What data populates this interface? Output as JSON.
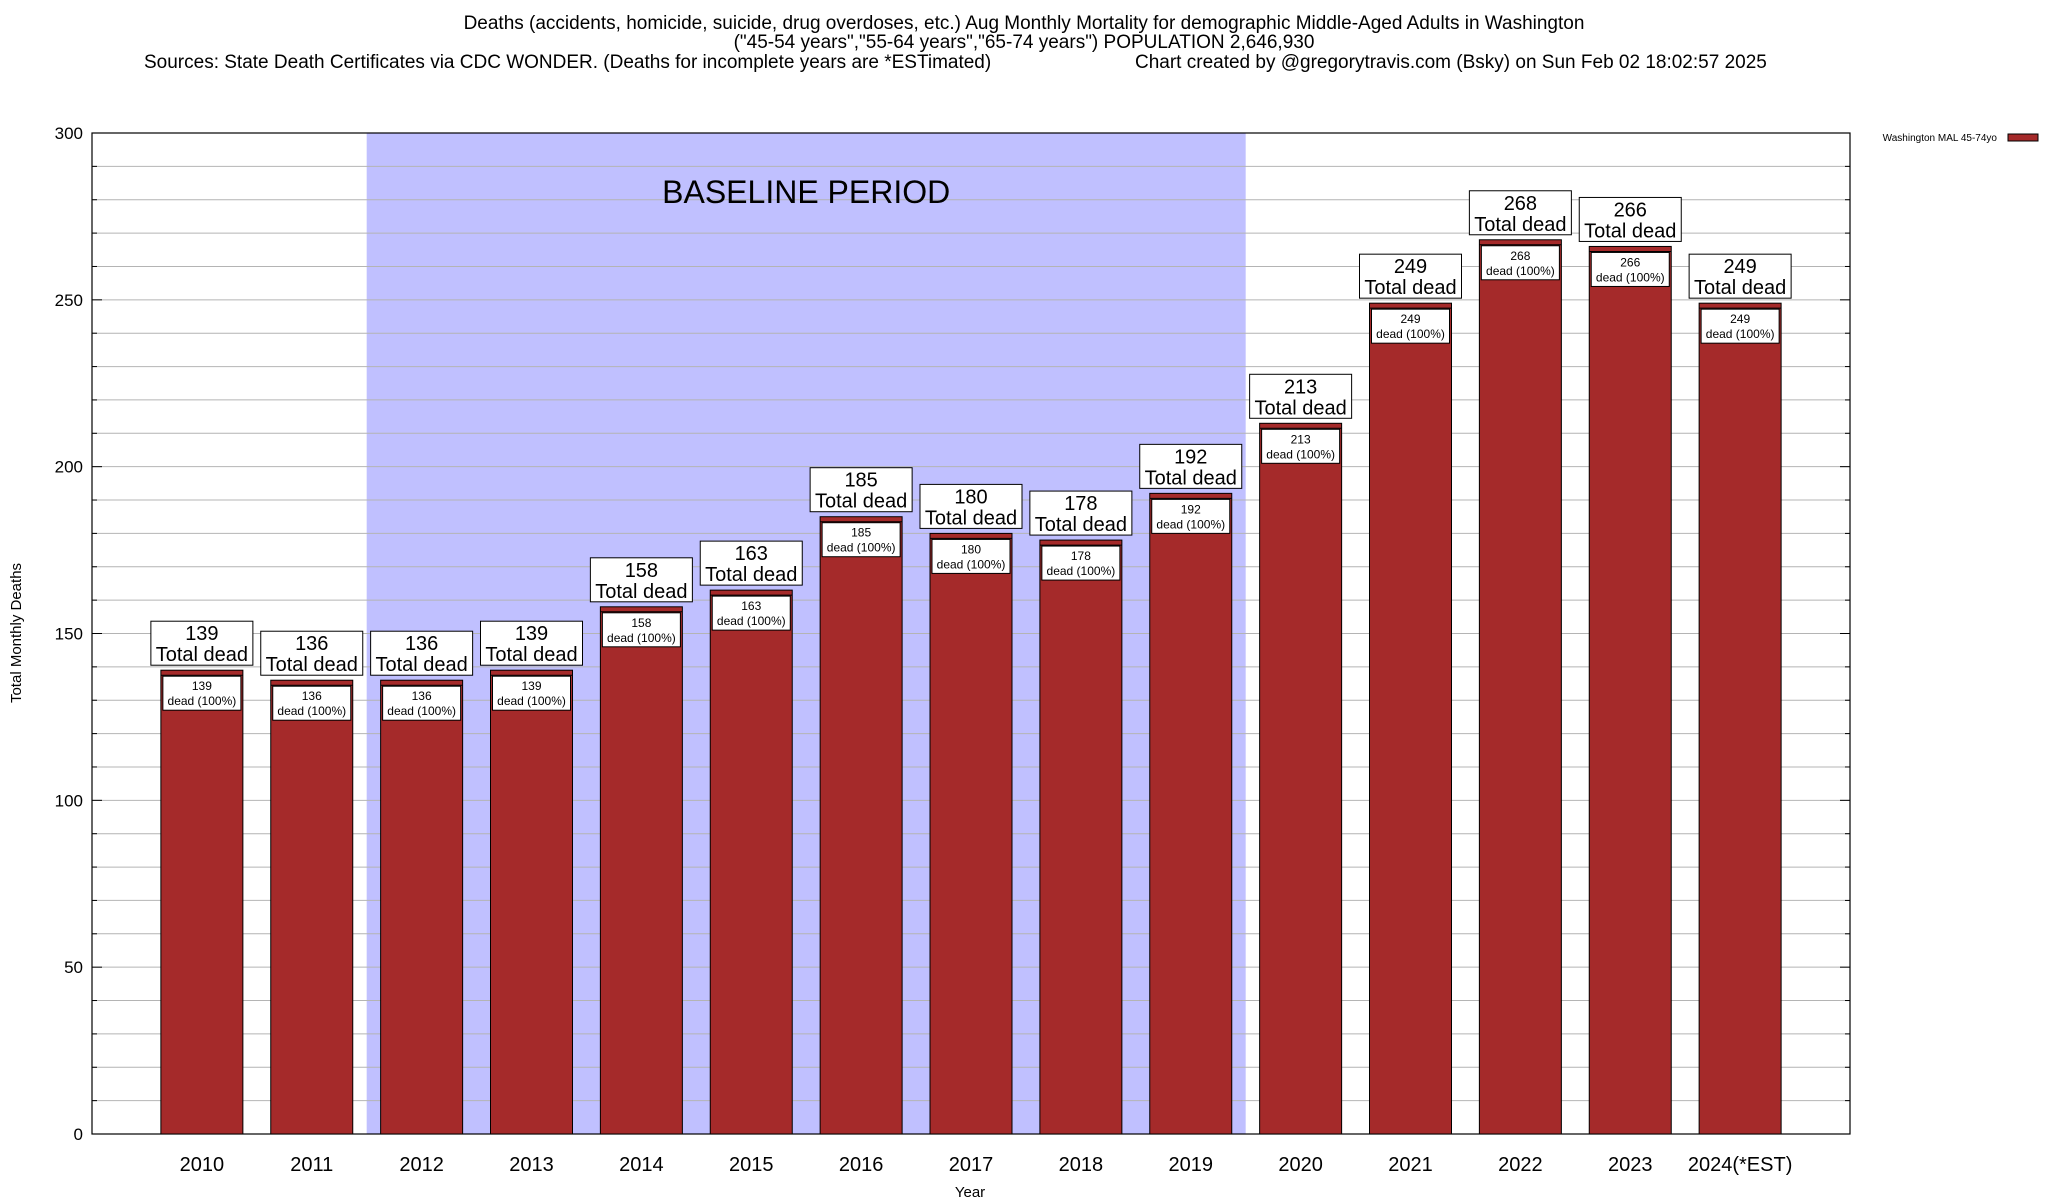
{
  "header": {
    "title_line1": "Deaths (accidents, homicide, suicide, drug overdoses, etc.) Aug Monthly Mortality for demographic Middle-Aged Adults in Washington",
    "title_line2": "(\"45-54 years\",\"55-64 years\",\"65-74 years\") POPULATION 2,646,930",
    "sources": "Sources: State Death Certificates via CDC WONDER. (Deaths for incomplete years are *ESTimated)",
    "credit": "Chart created by @gregorytravis.com (Bsky) on Sun Feb 02 18:02:57 2025"
  },
  "chart_data": {
    "type": "bar",
    "categories": [
      "2010",
      "2011",
      "2012",
      "2013",
      "2014",
      "2015",
      "2016",
      "2017",
      "2018",
      "2019",
      "2020",
      "2021",
      "2022",
      "2023",
      "2024(*EST)"
    ],
    "series": [
      {
        "name": "Washington MAL 45-74yo",
        "values": [
          139,
          136,
          136,
          139,
          158,
          163,
          185,
          180,
          178,
          192,
          213,
          249,
          268,
          266,
          249
        ],
        "color": "#a52a2a"
      }
    ],
    "xlabel": "Year",
    "ylabel": "Total Monthly Deaths",
    "ylim": [
      0,
      300
    ],
    "yticks": [
      0,
      50,
      100,
      150,
      200,
      250,
      300
    ],
    "grid": true,
    "legend_position": "top-right",
    "top_label_suffix": "Total dead",
    "inner_label_suffix": "dead (100%)",
    "shaded_region": {
      "label": "BASELINE PERIOD",
      "from": "2012",
      "to": "2019",
      "color": "#c0c0ff"
    }
  }
}
